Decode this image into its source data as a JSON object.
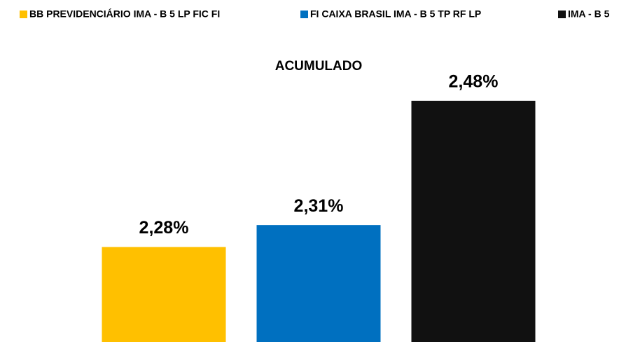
{
  "chart_data": {
    "type": "bar",
    "title": "ACUMULADO",
    "categories": [
      null
    ],
    "series": [
      {
        "name": "BB PREVIDENCIÁRIO IMA - B 5 LP FIC FI",
        "color": "#ffc000",
        "values": [
          2.28
        ],
        "value_labels": [
          "2,28%"
        ]
      },
      {
        "name": "FI CAIXA BRASIL IMA - B 5 TP RF LP",
        "color": "#0070c0",
        "values": [
          2.31
        ],
        "value_labels": [
          "2,31%"
        ]
      },
      {
        "name": "IMA - B 5",
        "color": "#111111",
        "values": [
          2.48
        ],
        "value_labels": [
          "2,48%"
        ]
      }
    ],
    "ylim": [
      2.15,
      2.5
    ],
    "legend": "top"
  }
}
